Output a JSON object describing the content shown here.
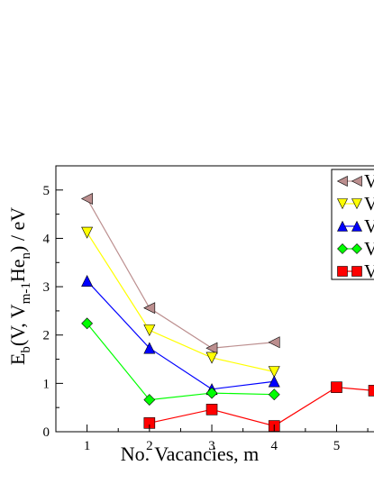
{
  "chart_data": {
    "type": "line",
    "title": "",
    "xlabel": "No. Vacancies, m",
    "ylabel_parts": {
      "E": "E",
      "sub_b": "b",
      "mid1": "(V, V",
      "sub_m1": "m-1",
      "mid2": "He",
      "sub_n": "n",
      "tail": ") / eV"
    },
    "xlim": [
      0.5,
      5.6
    ],
    "ylim": [
      0,
      5.5
    ],
    "xticks": [
      "1",
      "2",
      "3",
      "4",
      "5"
    ],
    "yticks": [
      "0",
      "1",
      "2",
      "3",
      "4",
      "5"
    ],
    "grid": false,
    "legend_position": "top-right",
    "series": [
      {
        "legend_text": "V",
        "color": "#bc8f8f",
        "marker": "triangle-left",
        "x": [
          1,
          2,
          3,
          4
        ],
        "y": [
          4.82,
          2.56,
          1.73,
          1.85
        ]
      },
      {
        "legend_text": "V",
        "color": "#ffff00",
        "marker": "triangle-down",
        "x": [
          1,
          2,
          3,
          4
        ],
        "y": [
          4.12,
          2.1,
          1.53,
          1.24
        ]
      },
      {
        "legend_text": "V",
        "color": "#0000ff",
        "marker": "triangle-up",
        "x": [
          1,
          2,
          3,
          4
        ],
        "y": [
          3.12,
          1.73,
          0.88,
          1.04
        ]
      },
      {
        "legend_text": "V",
        "color": "#00ff00",
        "marker": "diamond",
        "x": [
          1,
          2,
          3,
          4
        ],
        "y": [
          2.24,
          0.66,
          0.8,
          0.77
        ]
      },
      {
        "legend_text": "V",
        "color": "#ff0000",
        "marker": "square",
        "x": [
          2,
          3,
          4,
          5,
          5.6
        ],
        "y": [
          0.18,
          0.46,
          0.12,
          0.92,
          0.85
        ]
      }
    ]
  }
}
